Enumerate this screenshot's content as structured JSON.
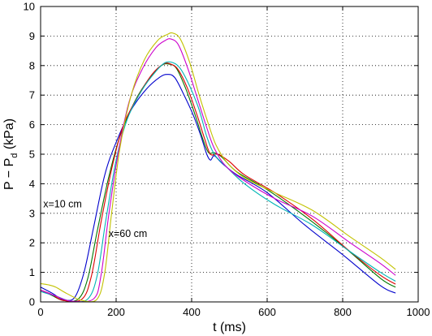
{
  "chart_data": {
    "type": "line",
    "xlabel": "t (ms)",
    "ylabel": {
      "main": "P − P",
      "sub": "d",
      "unit": " (kPa)"
    },
    "xlim": [
      0,
      1000
    ],
    "ylim": [
      0,
      10
    ],
    "xticks": [
      0,
      200,
      400,
      600,
      800,
      1000
    ],
    "yticks": [
      0,
      1,
      2,
      3,
      4,
      5,
      6,
      7,
      8,
      9,
      10
    ],
    "grid": true,
    "grid_style": "dotted",
    "annotations": [
      {
        "text": "x=10 cm",
        "x": 7,
        "y": 3.2
      },
      {
        "text": "x=60 cm",
        "x": 180,
        "y": 2.2
      }
    ],
    "series": [
      {
        "color": "#0000cc",
        "points": [
          [
            0,
            0.5
          ],
          [
            30,
            0.3
          ],
          [
            60,
            0.08
          ],
          [
            90,
            0.15
          ],
          [
            115,
            1.0
          ],
          [
            140,
            2.5
          ],
          [
            170,
            4.3
          ],
          [
            200,
            5.4
          ],
          [
            240,
            6.5
          ],
          [
            280,
            7.2
          ],
          [
            315,
            7.6
          ],
          [
            335,
            7.7
          ],
          [
            355,
            7.6
          ],
          [
            380,
            7.0
          ],
          [
            405,
            6.3
          ],
          [
            425,
            5.6
          ],
          [
            440,
            5.0
          ],
          [
            450,
            4.8
          ],
          [
            460,
            4.95
          ],
          [
            480,
            4.7
          ],
          [
            520,
            4.3
          ],
          [
            600,
            3.7
          ],
          [
            700,
            2.6
          ],
          [
            800,
            1.6
          ],
          [
            900,
            0.55
          ],
          [
            940,
            0.3
          ]
        ]
      },
      {
        "color": "#007700",
        "points": [
          [
            0,
            0.4
          ],
          [
            30,
            0.22
          ],
          [
            60,
            0.05
          ],
          [
            100,
            0.1
          ],
          [
            125,
            0.8
          ],
          [
            150,
            2.4
          ],
          [
            180,
            4.2
          ],
          [
            210,
            5.6
          ],
          [
            250,
            6.8
          ],
          [
            290,
            7.6
          ],
          [
            320,
            8.0
          ],
          [
            340,
            8.05
          ],
          [
            360,
            7.9
          ],
          [
            385,
            7.2
          ],
          [
            410,
            6.3
          ],
          [
            430,
            5.5
          ],
          [
            445,
            5.05
          ],
          [
            460,
            5.05
          ],
          [
            480,
            4.9
          ],
          [
            520,
            4.4
          ],
          [
            600,
            3.8
          ],
          [
            700,
            2.9
          ],
          [
            800,
            1.9
          ],
          [
            900,
            0.8
          ],
          [
            940,
            0.5
          ]
        ]
      },
      {
        "color": "#dd0000",
        "points": [
          [
            0,
            0.4
          ],
          [
            30,
            0.25
          ],
          [
            60,
            0.05
          ],
          [
            110,
            0.1
          ],
          [
            135,
            0.9
          ],
          [
            160,
            2.7
          ],
          [
            190,
            4.6
          ],
          [
            220,
            6.0
          ],
          [
            260,
            7.0
          ],
          [
            295,
            7.7
          ],
          [
            325,
            8.05
          ],
          [
            345,
            8.05
          ],
          [
            365,
            7.85
          ],
          [
            390,
            7.2
          ],
          [
            415,
            6.3
          ],
          [
            435,
            5.5
          ],
          [
            450,
            5.0
          ],
          [
            470,
            5.0
          ],
          [
            500,
            4.75
          ],
          [
            540,
            4.3
          ],
          [
            620,
            3.7
          ],
          [
            720,
            2.8
          ],
          [
            820,
            1.7
          ],
          [
            900,
            0.9
          ],
          [
            940,
            0.6
          ]
        ]
      },
      {
        "color": "#00b5b5",
        "points": [
          [
            0,
            0.35
          ],
          [
            40,
            0.2
          ],
          [
            80,
            0.03
          ],
          [
            125,
            0.1
          ],
          [
            150,
            0.9
          ],
          [
            172,
            2.7
          ],
          [
            200,
            4.8
          ],
          [
            230,
            6.2
          ],
          [
            270,
            7.2
          ],
          [
            305,
            7.8
          ],
          [
            330,
            8.1
          ],
          [
            350,
            8.1
          ],
          [
            370,
            7.9
          ],
          [
            395,
            7.3
          ],
          [
            420,
            6.5
          ],
          [
            440,
            5.6
          ],
          [
            460,
            5.0
          ],
          [
            490,
            4.6
          ],
          [
            540,
            4.0
          ],
          [
            620,
            3.3
          ],
          [
            720,
            2.6
          ],
          [
            820,
            1.7
          ],
          [
            900,
            1.0
          ],
          [
            940,
            0.7
          ]
        ]
      },
      {
        "color": "#cc00cc",
        "points": [
          [
            0,
            0.4
          ],
          [
            40,
            0.2
          ],
          [
            80,
            0.03
          ],
          [
            140,
            0.1
          ],
          [
            160,
            0.9
          ],
          [
            180,
            2.9
          ],
          [
            205,
            5.0
          ],
          [
            235,
            6.8
          ],
          [
            270,
            7.9
          ],
          [
            305,
            8.6
          ],
          [
            330,
            8.85
          ],
          [
            345,
            8.9
          ],
          [
            365,
            8.7
          ],
          [
            390,
            7.9
          ],
          [
            415,
            6.9
          ],
          [
            440,
            5.9
          ],
          [
            460,
            5.2
          ],
          [
            490,
            4.6
          ],
          [
            540,
            4.1
          ],
          [
            620,
            3.5
          ],
          [
            720,
            2.9
          ],
          [
            820,
            2.0
          ],
          [
            900,
            1.3
          ],
          [
            940,
            0.9
          ]
        ]
      },
      {
        "color": "#c2c200",
        "points": [
          [
            0,
            0.62
          ],
          [
            20,
            0.58
          ],
          [
            40,
            0.5
          ],
          [
            70,
            0.28
          ],
          [
            110,
            0.05
          ],
          [
            150,
            0.1
          ],
          [
            170,
            1.0
          ],
          [
            188,
            3.0
          ],
          [
            210,
            5.2
          ],
          [
            240,
            7.0
          ],
          [
            275,
            8.2
          ],
          [
            310,
            8.85
          ],
          [
            335,
            9.05
          ],
          [
            350,
            9.1
          ],
          [
            370,
            8.9
          ],
          [
            395,
            8.1
          ],
          [
            420,
            7.0
          ],
          [
            445,
            6.0
          ],
          [
            465,
            5.3
          ],
          [
            495,
            4.7
          ],
          [
            540,
            4.2
          ],
          [
            620,
            3.7
          ],
          [
            720,
            3.1
          ],
          [
            820,
            2.2
          ],
          [
            900,
            1.5
          ],
          [
            940,
            1.1
          ]
        ]
      }
    ]
  }
}
